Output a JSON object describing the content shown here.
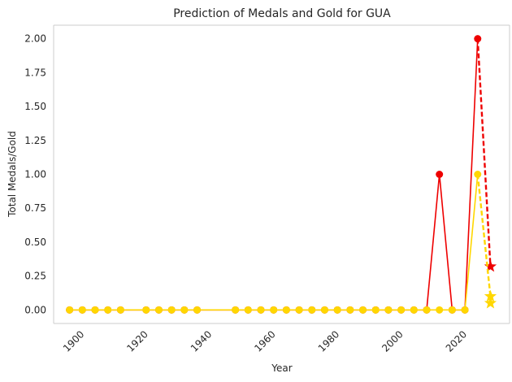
{
  "chart_data": {
    "type": "line",
    "title": "Prediction of Medals and Gold for GUA",
    "xlabel": "Year",
    "ylabel": "Total Medals/Gold",
    "xlim": [
      1891,
      2034
    ],
    "ylim": [
      -0.1,
      2.1
    ],
    "xticks": [
      1900,
      1920,
      1940,
      1960,
      1980,
      2000,
      2020
    ],
    "xtick_rotation": 45,
    "yticks": [
      "0.00",
      "0.25",
      "0.50",
      "0.75",
      "1.00",
      "1.25",
      "1.50",
      "1.75",
      "2.00"
    ],
    "grid": true,
    "legend": "none",
    "x": [
      1896,
      1900,
      1904,
      1908,
      1912,
      1920,
      1924,
      1928,
      1932,
      1936,
      1948,
      1952,
      1956,
      1960,
      1964,
      1968,
      1972,
      1976,
      1980,
      1984,
      1988,
      1992,
      1996,
      2000,
      2004,
      2008,
      2012,
      2016,
      2020,
      2024
    ],
    "series": [
      {
        "key": "total_medals",
        "color": "#ee0000",
        "marker": "circle",
        "values": [
          0,
          0,
          0,
          0,
          0,
          0,
          0,
          0,
          0,
          0,
          0,
          0,
          0,
          0,
          0,
          0,
          0,
          0,
          0,
          0,
          0,
          0,
          0,
          0,
          0,
          0,
          1,
          0,
          0,
          2
        ],
        "prediction": {
          "x": 2028,
          "y": 0.32,
          "marker": "star",
          "line": "dashed"
        }
      },
      {
        "key": "gold",
        "color": "#ffd700",
        "marker": "circle",
        "values": [
          0,
          0,
          0,
          0,
          0,
          0,
          0,
          0,
          0,
          0,
          0,
          0,
          0,
          0,
          0,
          0,
          0,
          0,
          0,
          0,
          0,
          0,
          0,
          0,
          0,
          0,
          0,
          0,
          0,
          1
        ],
        "prediction": {
          "x": 2028,
          "y": 0.1,
          "extra_points": [
            0.05
          ],
          "marker": "star",
          "line": "dashed"
        }
      }
    ]
  }
}
